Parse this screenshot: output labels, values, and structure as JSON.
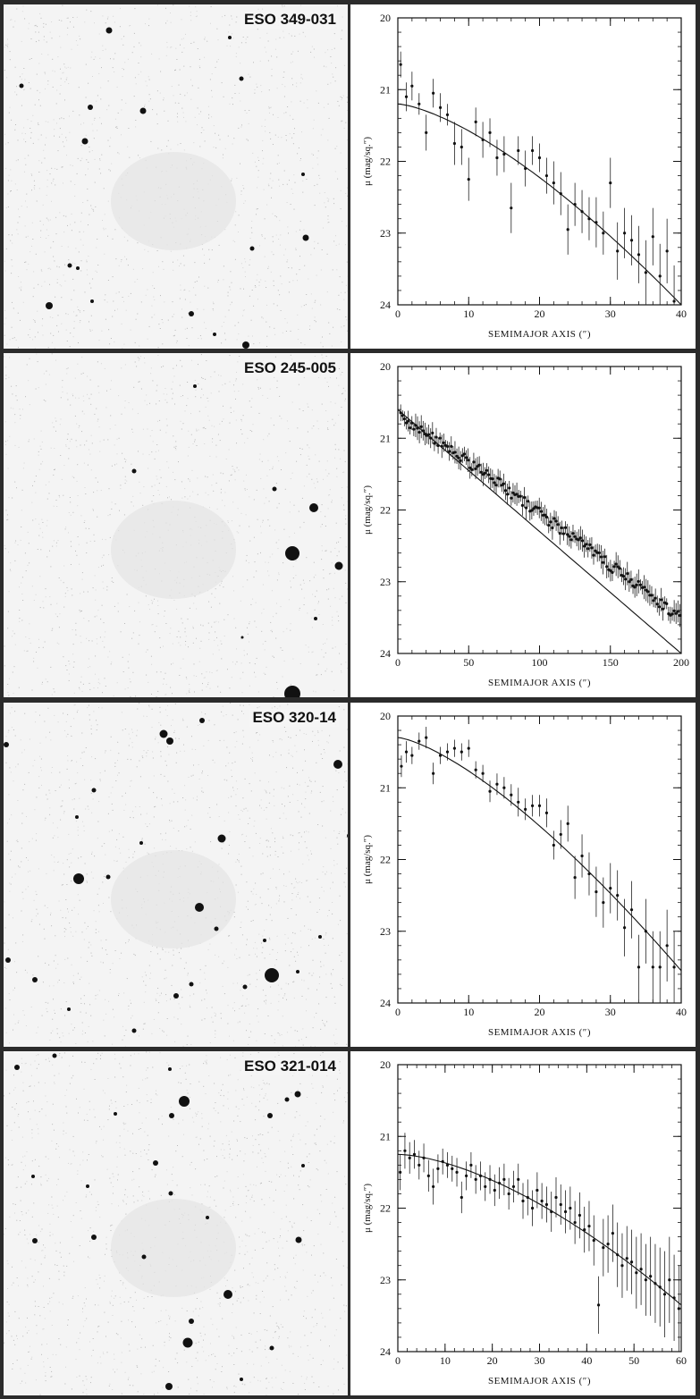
{
  "panels": [
    {
      "galaxy": "ESO 349-031",
      "stars": [
        [
          118,
          34,
          3.5
        ],
        [
          20,
          96,
          2.5
        ],
        [
          97,
          120,
          3
        ],
        [
          156,
          124,
          3.5
        ],
        [
          91,
          158,
          3.5
        ],
        [
          266,
          88,
          2.5
        ],
        [
          253,
          42,
          2
        ],
        [
          335,
          195,
          2
        ],
        [
          338,
          266,
          3.5
        ],
        [
          278,
          278,
          2.5
        ],
        [
          74,
          297,
          2.5
        ],
        [
          83,
          300,
          2
        ],
        [
          51,
          342,
          4
        ],
        [
          210,
          351,
          3
        ],
        [
          271,
          386,
          4
        ],
        [
          99,
          337,
          2
        ],
        [
          236,
          374,
          2
        ]
      ],
      "chart_data": {
        "type": "scatter",
        "xlabel": "SEMIMAJOR AXIS (″)",
        "ylabel": "μ (mag/sq.″)",
        "xlim": [
          0,
          40
        ],
        "ylim": [
          24,
          20
        ],
        "xticks": [
          0,
          10,
          20,
          30,
          40
        ],
        "yticks": [
          20,
          21,
          22,
          23,
          24
        ],
        "x": [
          0.4,
          1.2,
          2,
          3,
          4,
          5,
          6,
          7,
          8,
          9,
          10,
          11,
          12,
          13,
          14,
          15,
          16,
          17,
          18,
          19,
          20,
          21,
          22,
          23,
          24,
          25,
          26,
          27,
          28,
          29,
          30,
          31,
          32,
          33,
          34,
          35,
          36,
          37,
          38,
          39
        ],
        "y": [
          20.65,
          21.1,
          20.95,
          21.2,
          21.6,
          21.05,
          21.25,
          21.35,
          21.75,
          21.8,
          22.25,
          21.45,
          21.7,
          21.6,
          21.95,
          21.9,
          22.65,
          21.85,
          22.1,
          21.85,
          21.95,
          22.2,
          22.3,
          22.45,
          22.95,
          22.6,
          22.7,
          22.8,
          22.85,
          23.0,
          22.3,
          23.25,
          23.0,
          23.1,
          23.3,
          23.55,
          23.05,
          23.6,
          23.25,
          23.95
        ],
        "err": [
          0.18,
          0.2,
          0.2,
          0.15,
          0.25,
          0.2,
          0.2,
          0.15,
          0.3,
          0.25,
          0.3,
          0.2,
          0.25,
          0.2,
          0.25,
          0.25,
          0.35,
          0.2,
          0.25,
          0.2,
          0.2,
          0.25,
          0.3,
          0.3,
          0.35,
          0.3,
          0.3,
          0.3,
          0.35,
          0.3,
          0.35,
          0.4,
          0.35,
          0.35,
          0.4,
          0.45,
          0.4,
          0.45,
          0.45,
          0.5
        ],
        "model": {
          "center": 21.2,
          "end": 24.0,
          "power": 1.45
        }
      }
    },
    {
      "galaxy": "ESO 245-005",
      "stars": [
        [
          214,
          432,
          2
        ],
        [
          146,
          527,
          2.5
        ],
        [
          303,
          547,
          2.5
        ],
        [
          347,
          568,
          5
        ],
        [
          323,
          619,
          8
        ],
        [
          375,
          633,
          4.5
        ],
        [
          349,
          692,
          2
        ],
        [
          323,
          776,
          9
        ],
        [
          267,
          713,
          1.5
        ]
      ],
      "chart_data": {
        "type": "scatter",
        "xlabel": "SEMIMAJOR AXIS (″)",
        "ylabel": "μ (mag/sq.″)",
        "xlim": [
          0,
          200
        ],
        "ylim": [
          24,
          20
        ],
        "xticks": [
          0,
          50,
          100,
          150,
          200
        ],
        "yticks": [
          20,
          21,
          22,
          23,
          24
        ],
        "points_generated": {
          "x_start": 2,
          "x_end": 199,
          "count": 150,
          "start_value": 20.7,
          "end_value": 23.5,
          "scatter": 0.08,
          "err": 0.12
        },
        "model": {
          "center": 20.6,
          "end": 24.0,
          "power": 1.0
        }
      }
    },
    {
      "galaxy": "ESO 320-14",
      "stars": [
        [
          179,
          821,
          4.5
        ],
        [
          186,
          829,
          4
        ],
        [
          222,
          806,
          3
        ],
        [
          374,
          855,
          5
        ],
        [
          101,
          884,
          2.5
        ],
        [
          82,
          914,
          2
        ],
        [
          244,
          938,
          4.5
        ],
        [
          387,
          935,
          3
        ],
        [
          84,
          983,
          6
        ],
        [
          117,
          981,
          2.5
        ],
        [
          154,
          943,
          2
        ],
        [
          219,
          1015,
          5
        ],
        [
          300,
          1091,
          8
        ],
        [
          238,
          1039,
          2.5
        ],
        [
          193,
          1114,
          3
        ],
        [
          210,
          1101,
          2.5
        ],
        [
          35,
          1096,
          3
        ],
        [
          270,
          1104,
          2.5
        ],
        [
          354,
          1048,
          2
        ],
        [
          73,
          1129,
          2
        ],
        [
          146,
          1153,
          2.5
        ],
        [
          3,
          833,
          3
        ],
        [
          5,
          1074,
          3
        ],
        [
          329,
          1087,
          2
        ],
        [
          292,
          1052,
          2
        ]
      ],
      "chart_data": {
        "type": "scatter",
        "xlabel": "SEMIMAJOR AXIS (″)",
        "ylabel": "μ (mag/sq.″)",
        "xlim": [
          0,
          40
        ],
        "ylim": [
          24,
          20
        ],
        "xticks": [
          0,
          10,
          20,
          30,
          40
        ],
        "yticks": [
          20,
          21,
          22,
          23,
          24
        ],
        "x": [
          0.5,
          1.2,
          2,
          3,
          4,
          5,
          6,
          7,
          8,
          9,
          10,
          11,
          12,
          13,
          14,
          15,
          16,
          17,
          18,
          19,
          20,
          21,
          22,
          23,
          24,
          25,
          26,
          27,
          28,
          29,
          30,
          31,
          32,
          33,
          34,
          35,
          36,
          37,
          38,
          39
        ],
        "y": [
          20.7,
          20.5,
          20.55,
          20.35,
          20.3,
          20.8,
          20.55,
          20.5,
          20.45,
          20.5,
          20.45,
          20.75,
          20.8,
          21.05,
          20.95,
          21.0,
          21.1,
          21.2,
          21.3,
          21.25,
          21.25,
          21.35,
          21.8,
          21.65,
          21.5,
          22.25,
          21.95,
          22.2,
          22.45,
          22.6,
          22.4,
          22.5,
          22.95,
          22.7,
          23.5,
          23.0,
          23.5,
          23.5,
          23.2,
          23.5
        ],
        "err": [
          0.15,
          0.15,
          0.12,
          0.12,
          0.15,
          0.15,
          0.12,
          0.12,
          0.12,
          0.12,
          0.12,
          0.12,
          0.12,
          0.15,
          0.15,
          0.15,
          0.15,
          0.2,
          0.15,
          0.15,
          0.15,
          0.2,
          0.2,
          0.2,
          0.25,
          0.3,
          0.3,
          0.3,
          0.35,
          0.35,
          0.35,
          0.35,
          0.4,
          0.4,
          0.45,
          0.45,
          0.5,
          0.5,
          0.5,
          0.5
        ],
        "model": {
          "center": 20.3,
          "end": 23.55,
          "power": 1.4
        }
      }
    },
    {
      "galaxy": "ESO 321-014",
      "stars": [
        [
          202,
          1232,
          6
        ],
        [
          188,
          1248,
          3
        ],
        [
          329,
          1224,
          3.5
        ],
        [
          317,
          1230,
          2.5
        ],
        [
          298,
          1248,
          3
        ],
        [
          15,
          1194,
          3
        ],
        [
          57,
          1181,
          2.5
        ],
        [
          186,
          1196,
          2
        ],
        [
          170,
          1301,
          3
        ],
        [
          187,
          1335,
          2.5
        ],
        [
          35,
          1388,
          3
        ],
        [
          101,
          1384,
          3
        ],
        [
          157,
          1406,
          2.5
        ],
        [
          330,
          1387,
          3.5
        ],
        [
          251,
          1448,
          5
        ],
        [
          206,
          1502,
          5.5
        ],
        [
          210,
          1478,
          3
        ],
        [
          185,
          1551,
          4
        ],
        [
          300,
          1508,
          2.5
        ],
        [
          125,
          1246,
          2
        ],
        [
          94,
          1327,
          2
        ],
        [
          335,
          1304,
          2
        ],
        [
          228,
          1362,
          2
        ],
        [
          33,
          1316,
          2
        ],
        [
          266,
          1543,
          2
        ]
      ],
      "chart_data": {
        "type": "scatter",
        "xlabel": "SEMIMAJOR AXIS (″)",
        "ylabel": "μ (mag/sq.″)",
        "xlim": [
          0,
          60
        ],
        "ylim": [
          24,
          20
        ],
        "xticks": [
          0,
          10,
          20,
          30,
          40,
          50,
          60
        ],
        "yticks": [
          20,
          21,
          22,
          23,
          24
        ],
        "x": [
          0.5,
          1.5,
          2.5,
          3.5,
          4.5,
          5.5,
          6.5,
          7.5,
          8.5,
          9.5,
          10.5,
          11.5,
          12.5,
          13.5,
          14.5,
          15.5,
          16.5,
          17.5,
          18.5,
          19.5,
          20.5,
          21.5,
          22.5,
          23.5,
          24.5,
          25.5,
          26.5,
          27.5,
          28.5,
          29.5,
          30.5,
          31.5,
          32.5,
          33.5,
          34.5,
          35.5,
          36.5,
          37.5,
          38.5,
          39.5,
          40.5,
          41.5,
          42.5,
          43.5,
          44.5,
          45.5,
          46.5,
          47.5,
          48.5,
          49.5,
          50.5,
          51.5,
          52.5,
          53.5,
          54.5,
          55.5,
          56.5,
          57.5,
          58.5,
          59.5
        ],
        "y": [
          21.5,
          21.2,
          21.3,
          21.25,
          21.4,
          21.3,
          21.55,
          21.7,
          21.45,
          21.35,
          21.4,
          21.45,
          21.5,
          21.85,
          21.55,
          21.4,
          21.6,
          21.55,
          21.7,
          21.6,
          21.75,
          21.65,
          21.6,
          21.8,
          21.7,
          21.6,
          21.9,
          21.85,
          22.0,
          21.75,
          21.9,
          21.95,
          22.05,
          21.85,
          21.95,
          22.05,
          22.0,
          22.2,
          22.1,
          22.3,
          22.25,
          22.45,
          23.35,
          22.55,
          22.5,
          22.35,
          22.65,
          22.8,
          22.7,
          22.75,
          22.9,
          22.85,
          23.0,
          22.95,
          23.05,
          23.1,
          23.2,
          23.0,
          23.25,
          23.4
        ],
        "err": [
          0.25,
          0.25,
          0.22,
          0.2,
          0.2,
          0.2,
          0.22,
          0.25,
          0.2,
          0.18,
          0.18,
          0.18,
          0.2,
          0.22,
          0.2,
          0.18,
          0.2,
          0.2,
          0.2,
          0.2,
          0.22,
          0.22,
          0.22,
          0.22,
          0.22,
          0.22,
          0.25,
          0.25,
          0.25,
          0.25,
          0.25,
          0.25,
          0.28,
          0.28,
          0.28,
          0.3,
          0.3,
          0.3,
          0.32,
          0.32,
          0.35,
          0.35,
          0.4,
          0.4,
          0.4,
          0.4,
          0.45,
          0.45,
          0.45,
          0.45,
          0.5,
          0.5,
          0.5,
          0.55,
          0.55,
          0.55,
          0.6,
          0.6,
          0.6,
          0.6
        ],
        "model": {
          "center": 21.25,
          "end": 23.35,
          "power": 1.6
        }
      }
    }
  ]
}
